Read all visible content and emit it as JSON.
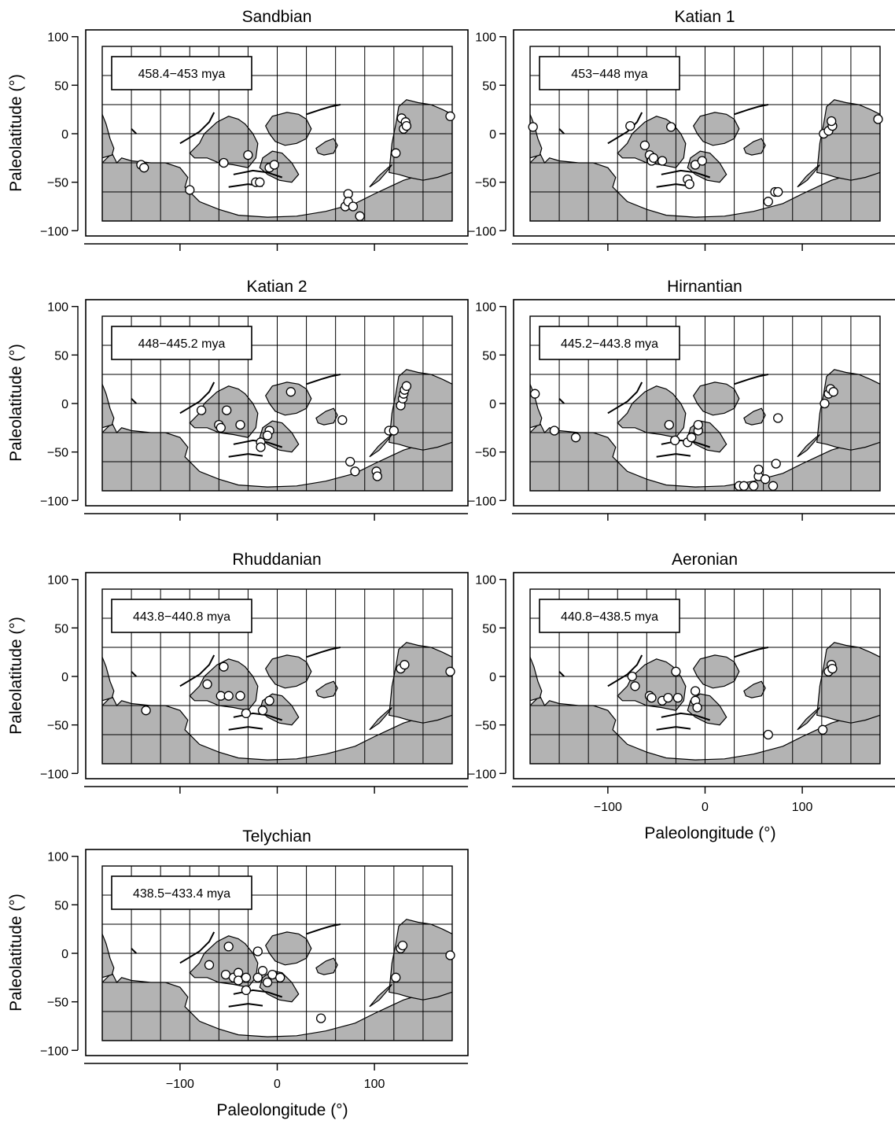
{
  "figure": {
    "x_axis_label": "Paleolongitude (°)",
    "y_axis_label": "Paleolatitude (°)",
    "x_ticks": [
      -100,
      0,
      100
    ],
    "y_ticks": [
      100,
      50,
      0,
      -50,
      -100
    ],
    "x_tick_labels": [
      "−100",
      "0",
      "100"
    ],
    "y_tick_labels": [
      "100",
      "50",
      "0",
      "−50",
      "−100"
    ],
    "land_color": "#b3b3b3",
    "point_fill": "#ffffff",
    "point_stroke": "#000000"
  },
  "chart_data": [
    {
      "type": "scatter",
      "title": "Sandbian",
      "age_label": "458.4−453 mya",
      "xlabel": "",
      "ylabel": "Paleolatitude (°)",
      "xlim": [
        -180,
        180
      ],
      "ylim": [
        -90,
        90
      ],
      "grid": true,
      "points": [
        [
          -140,
          -32
        ],
        [
          -137,
          -35
        ],
        [
          -90,
          -58
        ],
        [
          -55,
          -30
        ],
        [
          -30,
          -22
        ],
        [
          -22,
          -50
        ],
        [
          -18,
          -50
        ],
        [
          -8,
          -35
        ],
        [
          -3,
          -32
        ],
        [
          70,
          -75
        ],
        [
          73,
          -62
        ],
        [
          73,
          -70
        ],
        [
          78,
          -75
        ],
        [
          85,
          -85
        ],
        [
          122,
          -20
        ],
        [
          128,
          16
        ],
        [
          130,
          5
        ],
        [
          132,
          12
        ],
        [
          133,
          8
        ],
        [
          178,
          18
        ]
      ]
    },
    {
      "type": "scatter",
      "title": "Katian 1",
      "age_label": "453−448 mya",
      "xlabel": "",
      "ylabel": "",
      "xlim": [
        -180,
        180
      ],
      "ylim": [
        -90,
        90
      ],
      "grid": true,
      "points": [
        [
          -177,
          7
        ],
        [
          -77,
          8
        ],
        [
          -62,
          -12
        ],
        [
          -57,
          -22
        ],
        [
          -55,
          -28
        ],
        [
          -53,
          -25
        ],
        [
          -44,
          -28
        ],
        [
          -35,
          7
        ],
        [
          -18,
          -47
        ],
        [
          -16,
          -52
        ],
        [
          -10,
          -32
        ],
        [
          -3,
          -28
        ],
        [
          72,
          -60
        ],
        [
          75,
          -60
        ],
        [
          65,
          -70
        ],
        [
          122,
          0
        ],
        [
          127,
          3
        ],
        [
          131,
          8
        ],
        [
          130,
          13
        ],
        [
          178,
          15
        ]
      ]
    },
    {
      "type": "scatter",
      "title": "Katian 2",
      "age_label": "448−445.2 mya",
      "xlabel": "",
      "ylabel": "Paleolatitude (°)",
      "xlim": [
        -180,
        180
      ],
      "ylim": [
        -90,
        90
      ],
      "grid": true,
      "points": [
        [
          -78,
          -7
        ],
        [
          -60,
          -22
        ],
        [
          -58,
          -25
        ],
        [
          -52,
          -7
        ],
        [
          -38,
          -22
        ],
        [
          -17,
          -40
        ],
        [
          -17,
          -45
        ],
        [
          -8,
          -28
        ],
        [
          -10,
          -33
        ],
        [
          14,
          12
        ],
        [
          67,
          -17
        ],
        [
          75,
          -60
        ],
        [
          80,
          -70
        ],
        [
          102,
          -70
        ],
        [
          103,
          -75
        ],
        [
          115,
          -28
        ],
        [
          120,
          -28
        ],
        [
          127,
          -2
        ],
        [
          129,
          5
        ],
        [
          130,
          10
        ],
        [
          131,
          14
        ],
        [
          133,
          18
        ]
      ]
    },
    {
      "type": "scatter",
      "title": "Hirnantian",
      "age_label": "445.2−443.8 mya",
      "xlabel": "",
      "ylabel": "",
      "xlim": [
        -180,
        180
      ],
      "ylim": [
        -90,
        90
      ],
      "grid": true,
      "points": [
        [
          -175,
          10
        ],
        [
          -155,
          -28
        ],
        [
          -133,
          -35
        ],
        [
          -37,
          -22
        ],
        [
          -31,
          -38
        ],
        [
          -18,
          -40
        ],
        [
          -14,
          -35
        ],
        [
          -7,
          -28
        ],
        [
          -7,
          -22
        ],
        [
          75,
          -15
        ],
        [
          35,
          -85
        ],
        [
          40,
          -85
        ],
        [
          50,
          -85
        ],
        [
          55,
          -75
        ],
        [
          55,
          -68
        ],
        [
          62,
          -78
        ],
        [
          70,
          -85
        ],
        [
          73,
          -62
        ],
        [
          123,
          0
        ],
        [
          127,
          10
        ],
        [
          129,
          15
        ],
        [
          132,
          12
        ]
      ]
    },
    {
      "type": "scatter",
      "title": "Rhuddanian",
      "age_label": "443.8−440.8 mya",
      "xlabel": "",
      "ylabel": "Paleolatitude (°)",
      "xlim": [
        -180,
        180
      ],
      "ylim": [
        -90,
        90
      ],
      "grid": true,
      "points": [
        [
          -135,
          -35
        ],
        [
          -72,
          -8
        ],
        [
          -58,
          -20
        ],
        [
          -50,
          -20
        ],
        [
          -38,
          -20
        ],
        [
          -55,
          10
        ],
        [
          -32,
          -38
        ],
        [
          -15,
          -35
        ],
        [
          -8,
          -25
        ],
        [
          127,
          8
        ],
        [
          131,
          12
        ],
        [
          178,
          5
        ]
      ]
    },
    {
      "type": "scatter",
      "title": "Aeronian",
      "age_label": "440.8−438.5 mya",
      "xlabel": "Paleolongitude (°)",
      "ylabel": "",
      "xlim": [
        -180,
        180
      ],
      "ylim": [
        -90,
        90
      ],
      "grid": true,
      "points": [
        [
          -75,
          0
        ],
        [
          -72,
          -10
        ],
        [
          -57,
          -20
        ],
        [
          -55,
          -22
        ],
        [
          -44,
          -25
        ],
        [
          -38,
          -22
        ],
        [
          -28,
          -22
        ],
        [
          -30,
          5
        ],
        [
          -10,
          -15
        ],
        [
          -10,
          -25
        ],
        [
          -8,
          -32
        ],
        [
          65,
          -60
        ],
        [
          121,
          -55
        ],
        [
          127,
          5
        ],
        [
          130,
          12
        ],
        [
          131,
          8
        ]
      ]
    },
    {
      "type": "scatter",
      "title": "Telychian",
      "age_label": "438.5−433.4 mya",
      "xlabel": "Paleolongitude (°)",
      "ylabel": "Paleolatitude (°)",
      "xlim": [
        -180,
        180
      ],
      "ylim": [
        -90,
        90
      ],
      "grid": true,
      "points": [
        [
          -70,
          -12
        ],
        [
          -53,
          -22
        ],
        [
          -50,
          7
        ],
        [
          -45,
          -25
        ],
        [
          -40,
          -20
        ],
        [
          -40,
          -28
        ],
        [
          -32,
          -25
        ],
        [
          -32,
          -38
        ],
        [
          -20,
          -25
        ],
        [
          -15,
          -18
        ],
        [
          -10,
          -30
        ],
        [
          -5,
          -22
        ],
        [
          -20,
          2
        ],
        [
          3,
          -25
        ],
        [
          45,
          -67
        ],
        [
          122,
          -25
        ],
        [
          127,
          5
        ],
        [
          129,
          8
        ],
        [
          178,
          -2
        ]
      ]
    }
  ]
}
